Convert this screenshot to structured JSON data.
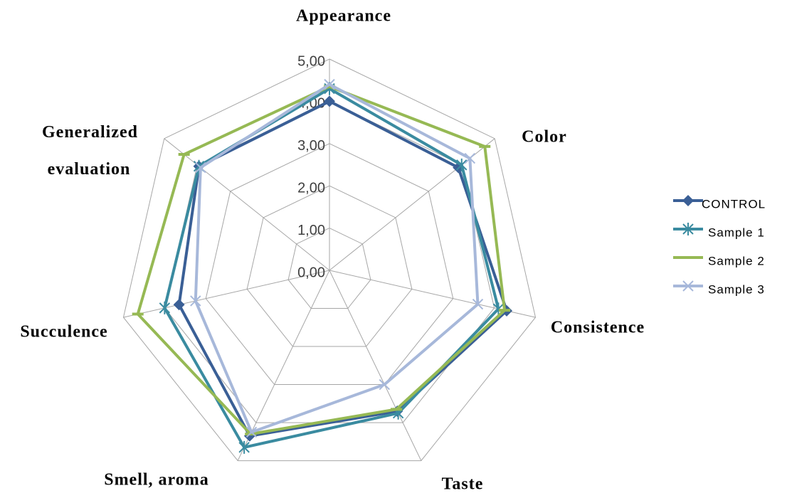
{
  "chart_data": {
    "type": "radar",
    "categories": [
      "Appearance",
      "Color",
      "Consistence",
      "Taste",
      "Smell, aroma",
      "Succulence",
      "Generalized evaluation"
    ],
    "rlim": [
      0,
      5
    ],
    "rticks": [
      {
        "value": 0,
        "label": "0,00"
      },
      {
        "value": 1,
        "label": "1,00"
      },
      {
        "value": 2,
        "label": "2,00"
      },
      {
        "value": 3,
        "label": "3,00"
      },
      {
        "value": 4,
        "label": "4,00"
      },
      {
        "value": 5,
        "label": "5,00"
      }
    ],
    "grid": true,
    "legend": "right",
    "series": [
      {
        "name": "CONTROL",
        "color": "#3a5f96",
        "marker": "diamond",
        "values": [
          4.0,
          3.9,
          4.3,
          3.7,
          4.35,
          3.65,
          3.95
        ]
      },
      {
        "name": "Sample 1",
        "color": "#3a8ba0",
        "marker": "asterisk",
        "values": [
          4.3,
          4.0,
          4.1,
          3.75,
          4.65,
          4.0,
          3.95
        ]
      },
      {
        "name": "Sample 2",
        "color": "#96b954",
        "marker": "dash",
        "values": [
          4.35,
          4.7,
          4.25,
          3.65,
          4.3,
          4.65,
          4.4
        ]
      },
      {
        "name": "Sample 3",
        "color": "#a7b8da",
        "marker": "x",
        "values": [
          4.4,
          4.25,
          3.6,
          3.0,
          4.25,
          3.25,
          3.9
        ]
      }
    ]
  }
}
